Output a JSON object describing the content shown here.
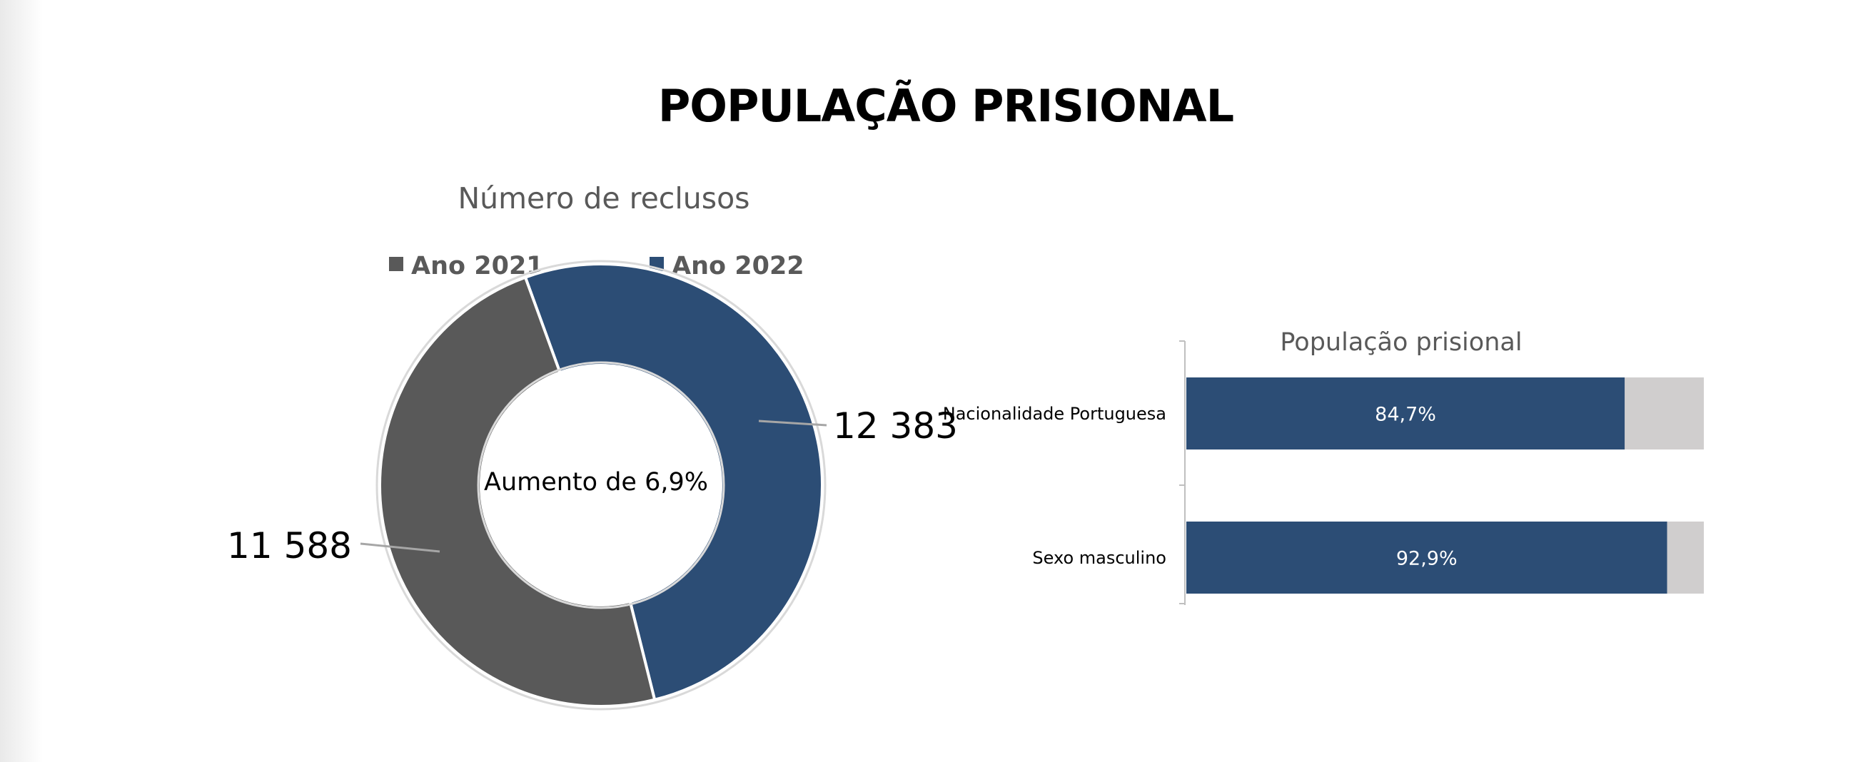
{
  "page": {
    "title": "POPULAÇÃO PRISIONAL"
  },
  "colors": {
    "ano_2021": "#595959",
    "ano_2022": "#2c4d75",
    "bar_primary": "#2c4d75",
    "bar_remainder": "#d0cece"
  },
  "chart_data": [
    {
      "type": "pie",
      "title": "Número de reclusos",
      "legend_position": "top",
      "center_label": "Aumento de 6,9%",
      "series": [
        {
          "name": "Ano 2021",
          "value": 11588,
          "label": "11 588"
        },
        {
          "name": "Ano 2022",
          "value": 12383,
          "label": "12 383"
        }
      ]
    },
    {
      "type": "bar",
      "orientation": "horizontal",
      "stacked": true,
      "title": "População prisional",
      "xlim": [
        0,
        100
      ],
      "categories": [
        "Nacionalidade Portuguesa",
        "Sexo masculino"
      ],
      "values": [
        84.7,
        92.9
      ],
      "value_labels": [
        "84,7%",
        "92,9%"
      ]
    }
  ]
}
